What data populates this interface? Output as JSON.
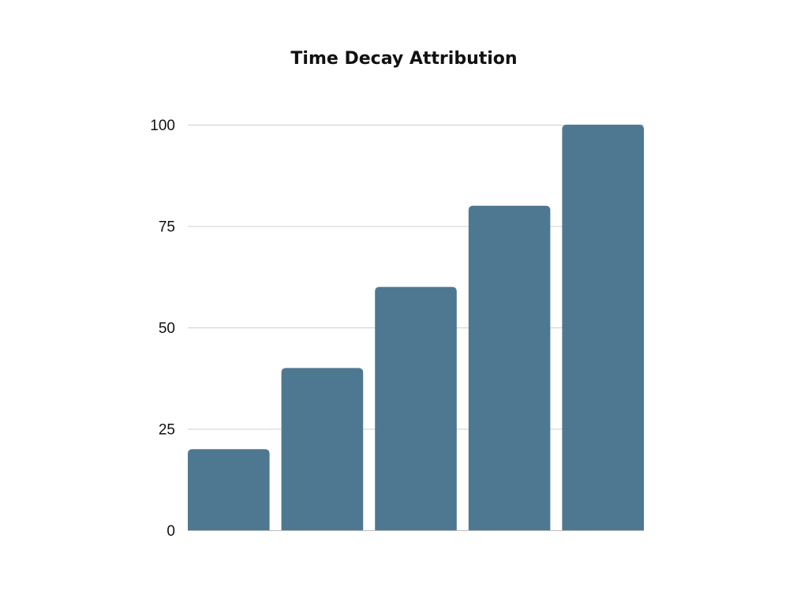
{
  "chart_data": {
    "type": "bar",
    "title": "Time Decay Attribution",
    "xlabel": "",
    "ylabel": "",
    "categories": [
      "",
      "",
      "",
      "",
      ""
    ],
    "values": [
      20,
      40,
      60,
      80,
      100
    ],
    "ylim": [
      0,
      100
    ],
    "yticks": [
      0,
      25,
      50,
      75,
      100
    ],
    "grid": true,
    "legend": "none",
    "bar_color": "#4e7891"
  }
}
